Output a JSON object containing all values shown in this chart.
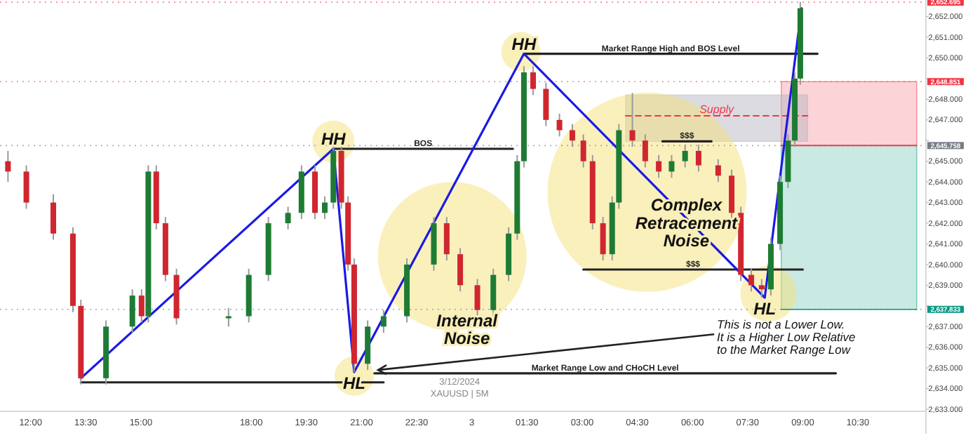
{
  "chart_data": {
    "type": "candlestick",
    "x": [
      "2024-12-02T11:23",
      "2024-12-02T11:53",
      "2024-12-02T12:37",
      "2024-12-02T13:09",
      "2024-12-02T13:22",
      "2024-12-02T14:03",
      "2024-12-02T14:46",
      "2024-12-02T15:01",
      "2024-12-02T15:12",
      "2024-12-02T15:25",
      "2024-12-02T15:40",
      "2024-12-02T15:58",
      "2024-12-02T17:23",
      "2024-12-02T17:56",
      "2024-12-02T18:28",
      "2024-12-02T19:00",
      "2024-12-02T19:22",
      "2024-12-02T19:44",
      "2024-12-02T20:00",
      "2024-12-02T20:14",
      "2024-12-02T20:27",
      "2024-12-02T20:38",
      "2024-12-02T20:48",
      "2024-12-02T21:10",
      "2024-12-02T21:36",
      "2024-12-02T22:14",
      "2024-12-02T22:58",
      "2024-12-02T23:19",
      "2024-12-02T23:41",
      "2024-12-03T00:09",
      "2024-12-03T00:35",
      "2024-12-03T01:00",
      "2024-12-03T01:14",
      "2024-12-03T01:25",
      "2024-12-03T01:40",
      "2024-12-03T02:01",
      "2024-12-03T02:23",
      "2024-12-03T02:44",
      "2024-12-03T03:02",
      "2024-12-03T03:17",
      "2024-12-03T03:34",
      "2024-12-03T03:49",
      "2024-12-03T04:00",
      "2024-12-03T04:22",
      "2024-12-03T04:43",
      "2024-12-03T05:05",
      "2024-12-03T05:26",
      "2024-12-03T05:48",
      "2024-12-03T06:10",
      "2024-12-03T06:42",
      "2024-12-03T07:04",
      "2024-12-03T07:19",
      "2024-12-03T07:36",
      "2024-12-03T07:53",
      "2024-12-03T08:08",
      "2024-12-03T08:23",
      "2024-12-03T08:36",
      "2024-12-03T08:47",
      "2024-12-03T08:56"
    ],
    "ohlc": [
      [
        2645,
        2645.5,
        2644,
        2644.5
      ],
      [
        2644.5,
        2644.8,
        2642.7,
        2643
      ],
      [
        2643,
        2643.4,
        2641.2,
        2641.5
      ],
      [
        2641.5,
        2641.8,
        2637.7,
        2638
      ],
      [
        2638,
        2638.3,
        2634.2,
        2634.5
      ],
      [
        2634.5,
        2637.3,
        2634.2,
        2637
      ],
      [
        2637,
        2638.8,
        2636.7,
        2638.5
      ],
      [
        2638.5,
        2638.8,
        2637.2,
        2637.5
      ],
      [
        2637.5,
        2644.8,
        2637.2,
        2644.5
      ],
      [
        2644.5,
        2644.8,
        2641.7,
        2642
      ],
      [
        2642,
        2642.3,
        2639.2,
        2639.5
      ],
      [
        2639.5,
        2639.8,
        2637.1,
        2637.4
      ],
      [
        2637.4,
        2637.9,
        2637.0,
        2637.5
      ],
      [
        2637.5,
        2639.8,
        2637.2,
        2639.5
      ],
      [
        2639.5,
        2642.3,
        2639.2,
        2642
      ],
      [
        2642,
        2642.8,
        2641.7,
        2642.5
      ],
      [
        2642.5,
        2644.8,
        2642.2,
        2644.5
      ],
      [
        2644.5,
        2644.8,
        2642.2,
        2642.5
      ],
      [
        2642.5,
        2643.3,
        2642.2,
        2643
      ],
      [
        2643,
        2645.8,
        2642.7,
        2645.5
      ],
      [
        2645.5,
        2645.8,
        2642.7,
        2643
      ],
      [
        2643,
        2643.3,
        2639.7,
        2640
      ],
      [
        2640,
        2640.3,
        2634.8,
        2635.2
      ],
      [
        2635.2,
        2637.3,
        2634.9,
        2637
      ],
      [
        2637,
        2637.8,
        2636.7,
        2637.5
      ],
      [
        2637.5,
        2640.3,
        2637.2,
        2640
      ],
      [
        2640,
        2642.3,
        2639.7,
        2642
      ],
      [
        2642,
        2642.3,
        2640.2,
        2640.5
      ],
      [
        2640.5,
        2640.8,
        2638.7,
        2639
      ],
      [
        2639,
        2639.3,
        2637.5,
        2637.8
      ],
      [
        2637.8,
        2639.8,
        2637.5,
        2639.5
      ],
      [
        2639.5,
        2641.8,
        2639.2,
        2641.5
      ],
      [
        2641.5,
        2645.3,
        2641.2,
        2645
      ],
      [
        2645,
        2649.6,
        2644.7,
        2649.3
      ],
      [
        2649.3,
        2649.6,
        2648.2,
        2648.5
      ],
      [
        2648.5,
        2648.8,
        2646.7,
        2647
      ],
      [
        2647,
        2647.3,
        2646.2,
        2646.5
      ],
      [
        2646.5,
        2646.8,
        2645.7,
        2646
      ],
      [
        2646,
        2646.3,
        2644.7,
        2645
      ],
      [
        2645,
        2645.3,
        2641.7,
        2642
      ],
      [
        2642,
        2642.3,
        2640.2,
        2640.5
      ],
      [
        2640.5,
        2643.3,
        2640.2,
        2643
      ],
      [
        2643,
        2646.8,
        2642.7,
        2646.5
      ],
      [
        2646.5,
        2648.3,
        2645.7,
        2646
      ],
      [
        2646,
        2646.3,
        2644.7,
        2645
      ],
      [
        2645,
        2645.3,
        2644.2,
        2644.5
      ],
      [
        2644.5,
        2645.3,
        2644.2,
        2645
      ],
      [
        2645,
        2645.8,
        2644.7,
        2645.5
      ],
      [
        2645.5,
        2645.8,
        2644.5,
        2644.8
      ],
      [
        2644.8,
        2645.1,
        2644.0,
        2644.3
      ],
      [
        2644.3,
        2644.6,
        2642.2,
        2642.5
      ],
      [
        2642.5,
        2642.8,
        2639.2,
        2639.5
      ],
      [
        2639.5,
        2639.8,
        2638.7,
        2639
      ],
      [
        2639,
        2639.3,
        2638.4,
        2638.8
      ],
      [
        2638.8,
        2641.3,
        2638.5,
        2641
      ],
      [
        2641,
        2644.3,
        2640.7,
        2644
      ],
      [
        2644,
        2646.3,
        2643.7,
        2646
      ],
      [
        2646,
        2649.3,
        2645.7,
        2649
      ],
      [
        2649,
        2652.7,
        2648.7,
        2652.4
      ]
    ],
    "series": [
      {
        "type": "line",
        "color": "#f23645",
        "x": [
          "2024-12-03T08:25",
          "2024-12-03T12:06"
        ],
        "values": [
          2645.758,
          2645.758
        ],
        "lower": [
          2645.758,
          2645.758
        ],
        "upper": [
          2648.851,
          2648.851
        ]
      },
      {
        "type": "line",
        "color": "#089981",
        "x": [
          "2024-12-03T08:25",
          "2024-12-03T12:06"
        ],
        "values": [
          2637.833,
          2637.833
        ],
        "lower": [
          2637.833,
          2637.833
        ],
        "upper": [
          2645.758,
          2645.758
        ]
      },
      {
        "type": "line",
        "name": "Supply",
        "color": "#f23645",
        "line_style": "dashed",
        "x": [
          "2024-12-03T04:11",
          "2024-12-03T09:08"
        ],
        "values": [
          2647.2,
          2647.2
        ],
        "lower": [
          2645.96,
          2645.96
        ],
        "upper": [
          2648.2,
          2648.2
        ]
      },
      {
        "type": "line",
        "name": "BOS",
        "color": "#222222",
        "x": [
          "2024-12-02T20:14",
          "2024-12-03T01:07"
        ],
        "values": [
          2645.6,
          2645.6
        ]
      },
      {
        "type": "line",
        "name": "Market Range High and BOS Level",
        "color": "#222222",
        "x": [
          "2024-12-03T01:25",
          "2024-12-03T09:24"
        ],
        "values": [
          2650.2,
          2650.2
        ]
      },
      {
        "type": "line",
        "color": "#222222",
        "x": [
          "2024-12-02T13:22",
          "2024-12-02T21:36"
        ],
        "values": [
          2634.3,
          2634.3
        ]
      },
      {
        "type": "line",
        "name": "Market Range Low and CHoCH Level",
        "color": "#222222",
        "x": [
          "2024-12-02T21:21",
          "2024-12-03T09:54"
        ],
        "values": [
          2634.74,
          2634.74
        ]
      },
      {
        "type": "line",
        "name": "$$$",
        "color": "#222222",
        "x": [
          "2024-12-03T03:02",
          "2024-12-03T09:00"
        ],
        "values": [
          2639.76,
          2639.76
        ]
      },
      {
        "type": "line",
        "name": "$$$",
        "color": "#222222",
        "x": [
          "2024-12-03T05:11",
          "2024-12-03T06:31"
        ],
        "values": [
          2645.96,
          2645.96
        ]
      },
      {
        "type": "line",
        "color": "#1a1ae6",
        "x": [
          "2024-12-02T13:22",
          "2024-12-02T20:14",
          "2024-12-02T20:48",
          "2024-12-03T01:25",
          "2024-12-03T07:58",
          "2024-12-03T08:58"
        ],
        "values": [
          2634.5,
          2645.6,
          2634.8,
          2650.2,
          2638.4,
          2652.4
        ]
      }
    ],
    "annotations": [
      {
        "text": "HH",
        "x": "2024-12-02T20:14",
        "y": 2645.6
      },
      {
        "text": "HL",
        "x": "2024-12-02T20:48",
        "y": 2634.8
      },
      "Internal Noise",
      {
        "text": "HH",
        "x": "2024-12-03T01:25",
        "y": 2650.2
      },
      "Complex Retracement Noise",
      {
        "text": "HL",
        "x": "2024-12-03T07:58",
        "y": 2638.4
      },
      {
        "text": "This is not a Lower Low.\nIt is a Higher Low Relative\nto the Market Range Low",
        "x": "2024-12-02T21:27",
        "y": 2634.9
      },
      "3/12/2024",
      "XAUUSD | 5M"
    ],
    "ref_lines": [
      {
        "axis": "y",
        "value": 2652.695,
        "label": "2,652.695",
        "color": "#f23645"
      },
      {
        "axis": "y",
        "value": 2648.851,
        "label": "2,648.851",
        "color": "#f23645"
      },
      {
        "axis": "y",
        "value": 2645.758,
        "label": "2,645.758",
        "color": "#787b86"
      },
      {
        "axis": "y",
        "value": 2637.833,
        "label": "2,637.833",
        "color": "#089981"
      }
    ],
    "xlim": [
      "2024-12-02T11:10",
      "2024-12-03T12:21"
    ],
    "ylim": [
      2632.9,
      2652.8
    ],
    "xticks": [
      {
        "value": "2024-12-02T12:00",
        "label": "12:00"
      },
      {
        "value": "2024-12-02T13:30",
        "label": "13:30"
      },
      {
        "value": "2024-12-02T15:00",
        "label": "15:00"
      },
      {
        "value": "2024-12-02T18:00",
        "label": "18:00"
      },
      {
        "value": "2024-12-02T19:30",
        "label": "19:30"
      },
      {
        "value": "2024-12-02T21:00",
        "label": "21:00"
      },
      {
        "value": "2024-12-02T22:30",
        "label": "22:30"
      },
      {
        "value": "2024-12-03T00:00",
        "label": "3"
      },
      {
        "value": "2024-12-03T01:30",
        "label": "01:30"
      },
      {
        "value": "2024-12-03T03:00",
        "label": "03:00"
      },
      {
        "value": "2024-12-03T04:30",
        "label": "04:30"
      },
      {
        "value": "2024-12-03T06:00",
        "label": "06:00"
      },
      {
        "value": "2024-12-03T07:30",
        "label": "07:30"
      },
      {
        "value": "2024-12-03T09:00",
        "label": "09:00"
      },
      {
        "value": "2024-12-03T10:30",
        "label": "10:30"
      }
    ],
    "yticks": [
      {
        "value": 2633,
        "label": "2,633.000"
      },
      {
        "value": 2634,
        "label": "2,634.000"
      },
      {
        "value": 2635,
        "label": "2,635.000"
      },
      {
        "value": 2636,
        "label": "2,636.000"
      },
      {
        "value": 2637,
        "label": "2,637.000"
      },
      {
        "value": 2638,
        "label": null
      },
      {
        "value": 2639,
        "label": "2,639.000"
      },
      {
        "value": 2640,
        "label": "2,640.000"
      },
      {
        "value": 2641,
        "label": "2,641.000"
      },
      {
        "value": 2642,
        "label": "2,642.000"
      },
      {
        "value": 2643,
        "label": "2,643.000"
      },
      {
        "value": 2644,
        "label": "2,644.000"
      },
      {
        "value": 2645,
        "label": "2,645.000"
      },
      {
        "value": 2646,
        "label": null
      },
      {
        "value": 2647,
        "label": "2,647.000"
      },
      {
        "value": 2648,
        "label": "2,648.000"
      },
      {
        "value": 2649,
        "label": null
      },
      {
        "value": 2650,
        "label": "2,650.000"
      },
      {
        "value": 2651,
        "label": "2,651.000"
      },
      {
        "value": 2652,
        "label": "2,652.000"
      }
    ]
  }
}
